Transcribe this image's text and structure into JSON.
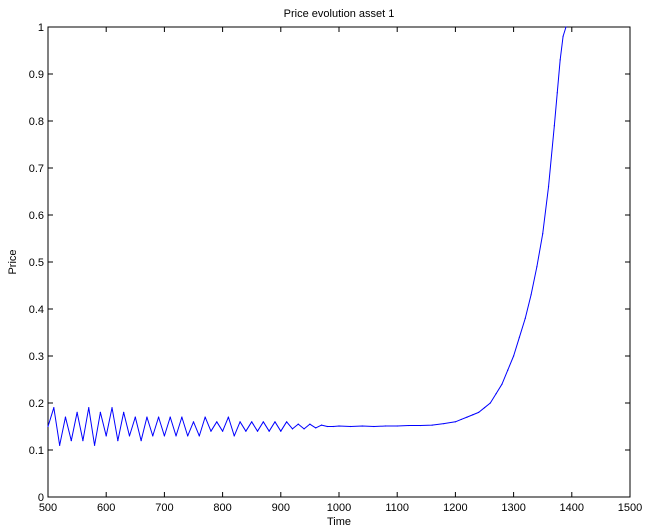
{
  "chart_data": {
    "type": "line",
    "title": "Price evolution asset 1",
    "xlabel": "Time",
    "ylabel": "Price",
    "xlim": [
      500,
      1500
    ],
    "ylim": [
      0,
      1
    ],
    "xticks": [
      500,
      600,
      700,
      800,
      900,
      1000,
      1100,
      1200,
      1300,
      1400,
      1500
    ],
    "yticks": [
      0,
      0.1,
      0.2,
      0.3,
      0.4,
      0.5,
      0.6,
      0.7,
      0.8,
      0.9,
      1
    ],
    "grid": false,
    "series": [
      {
        "color": "#0000ff",
        "x": [
          500,
          510,
          520,
          530,
          540,
          550,
          560,
          570,
          580,
          590,
          600,
          610,
          620,
          630,
          640,
          650,
          660,
          670,
          680,
          690,
          700,
          710,
          720,
          730,
          740,
          750,
          760,
          770,
          780,
          790,
          800,
          810,
          820,
          830,
          840,
          850,
          860,
          870,
          880,
          890,
          900,
          910,
          920,
          930,
          940,
          950,
          960,
          970,
          980,
          990,
          1000,
          1020,
          1040,
          1060,
          1080,
          1100,
          1120,
          1140,
          1160,
          1180,
          1200,
          1210,
          1220,
          1230,
          1240,
          1250,
          1260,
          1270,
          1280,
          1290,
          1300,
          1310,
          1320,
          1330,
          1340,
          1350,
          1360,
          1370,
          1375,
          1380,
          1385,
          1390
        ],
        "y": [
          0.15,
          0.19,
          0.11,
          0.17,
          0.12,
          0.18,
          0.12,
          0.19,
          0.11,
          0.18,
          0.13,
          0.19,
          0.12,
          0.18,
          0.13,
          0.17,
          0.12,
          0.17,
          0.13,
          0.17,
          0.13,
          0.17,
          0.13,
          0.17,
          0.13,
          0.16,
          0.13,
          0.17,
          0.14,
          0.16,
          0.14,
          0.17,
          0.13,
          0.16,
          0.14,
          0.16,
          0.14,
          0.16,
          0.14,
          0.16,
          0.14,
          0.16,
          0.145,
          0.155,
          0.145,
          0.155,
          0.147,
          0.153,
          0.15,
          0.15,
          0.151,
          0.15,
          0.151,
          0.15,
          0.151,
          0.151,
          0.152,
          0.152,
          0.153,
          0.156,
          0.16,
          0.165,
          0.17,
          0.175,
          0.18,
          0.19,
          0.2,
          0.22,
          0.24,
          0.27,
          0.3,
          0.34,
          0.38,
          0.43,
          0.49,
          0.56,
          0.66,
          0.79,
          0.86,
          0.93,
          0.98,
          1.0
        ]
      }
    ]
  }
}
